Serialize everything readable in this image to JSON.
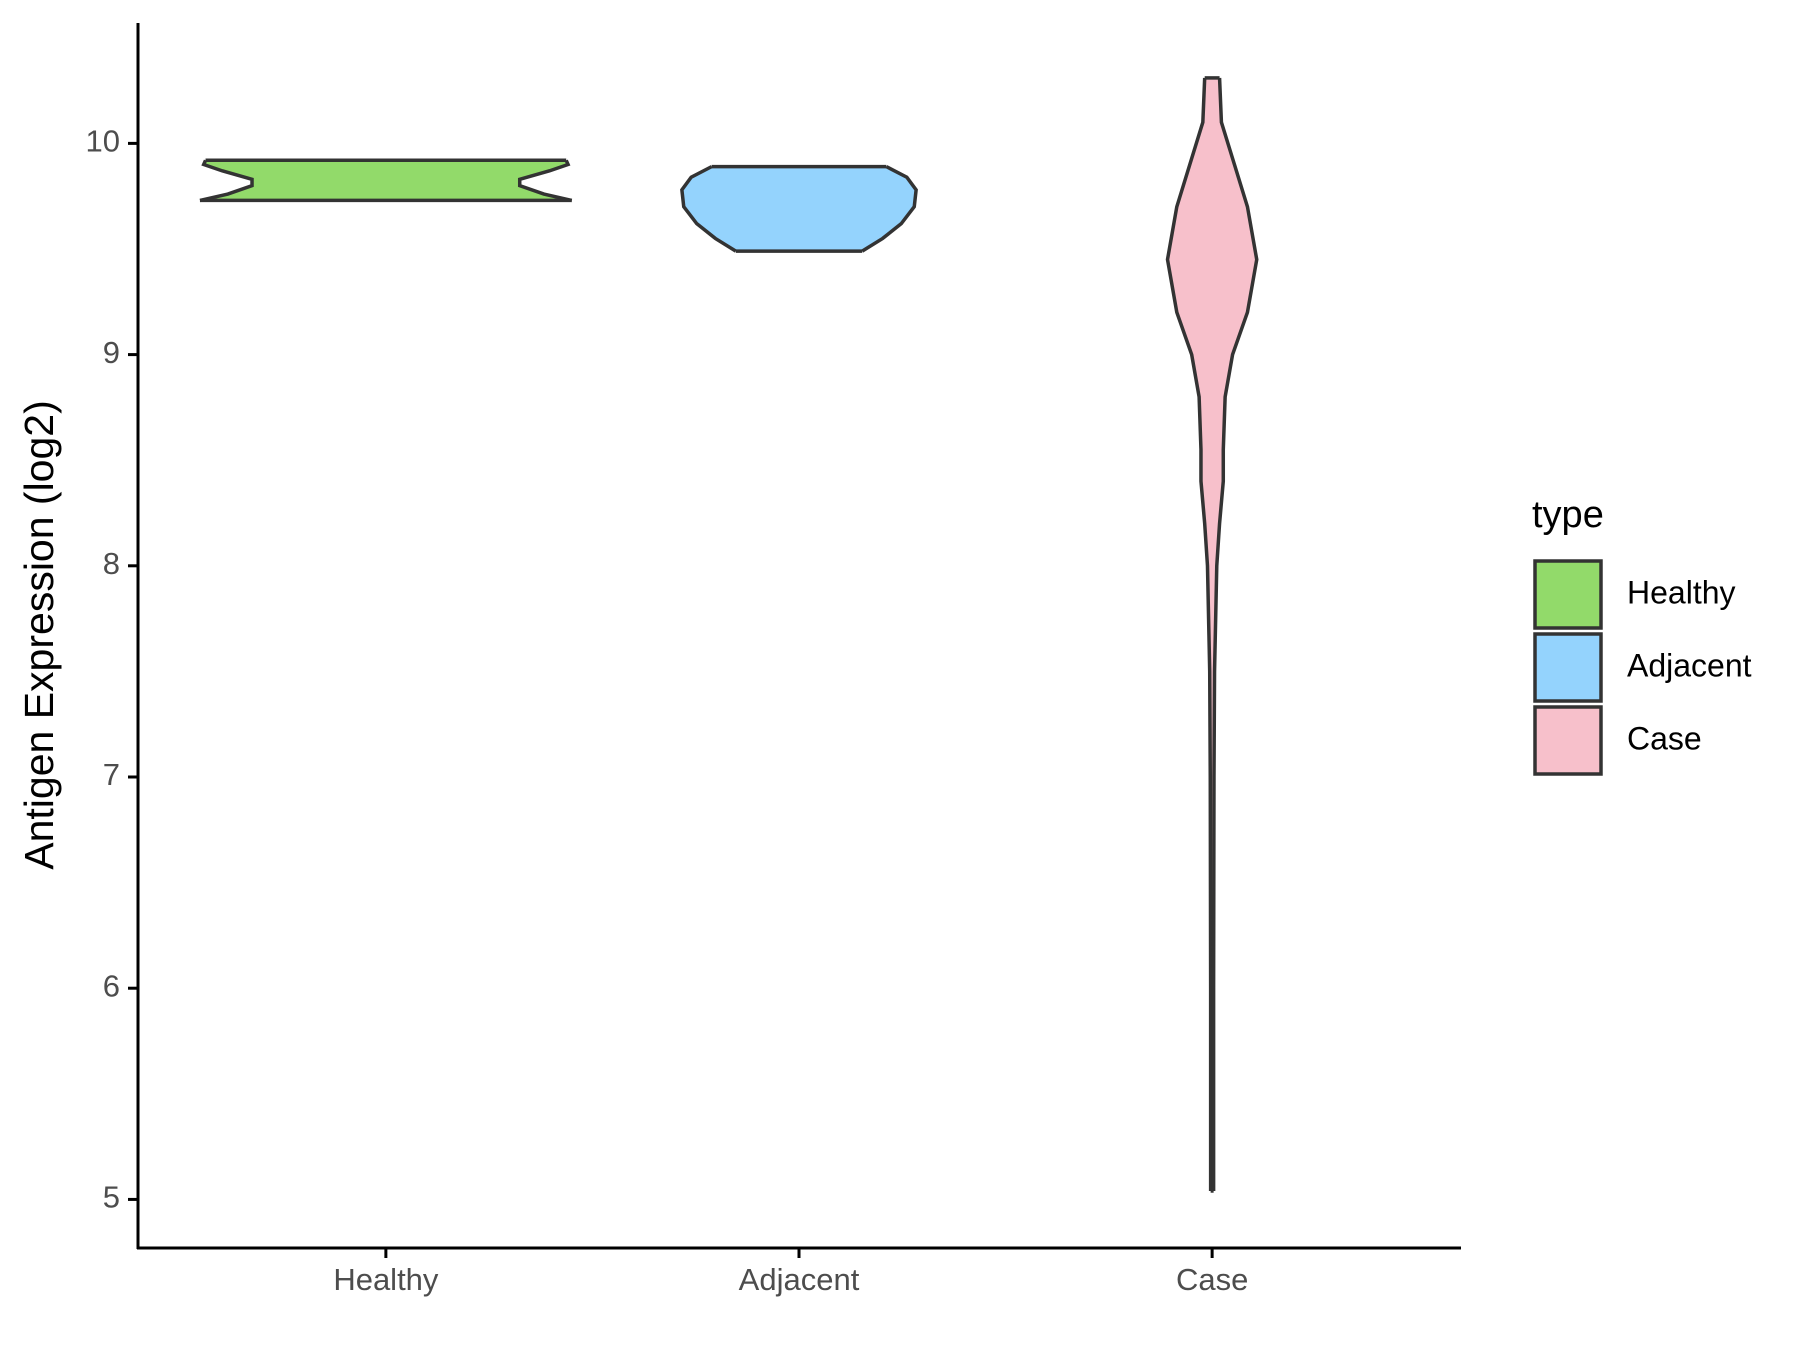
{
  "chart_data": {
    "type": "violin",
    "y_label": "Antigen Expression (log2)",
    "categories": [
      "Healthy",
      "Adjacent",
      "Case"
    ],
    "legend_title": "type",
    "ylim": [
      4.77,
      10.57
    ],
    "yticks": [
      5,
      6,
      7,
      8,
      9,
      10
    ],
    "series": [
      {
        "name": "Healthy",
        "color": "#92da6a",
        "y": [
          9.73,
          9.76,
          9.8,
          9.83,
          9.87,
          9.9,
          9.92
        ],
        "density": [
          1.0,
          0.85,
          0.72,
          0.72,
          0.88,
          0.98,
          0.97
        ]
      },
      {
        "name": "Adjacent",
        "color": "#94d3fd",
        "y": [
          9.49,
          9.55,
          9.62,
          9.7,
          9.78,
          9.84,
          9.89
        ],
        "density": [
          0.34,
          0.45,
          0.55,
          0.62,
          0.63,
          0.58,
          0.47
        ]
      },
      {
        "name": "Case",
        "color": "#f7c0cb",
        "y": [
          5.04,
          6.0,
          7.0,
          7.5,
          8.0,
          8.2,
          8.4,
          8.55,
          8.8,
          9.0,
          9.2,
          9.45,
          9.7,
          9.9,
          10.1,
          10.31
        ],
        "density": [
          0.008,
          0.008,
          0.01,
          0.013,
          0.025,
          0.04,
          0.06,
          0.06,
          0.07,
          0.11,
          0.19,
          0.24,
          0.19,
          0.12,
          0.05,
          0.04
        ]
      }
    ]
  }
}
